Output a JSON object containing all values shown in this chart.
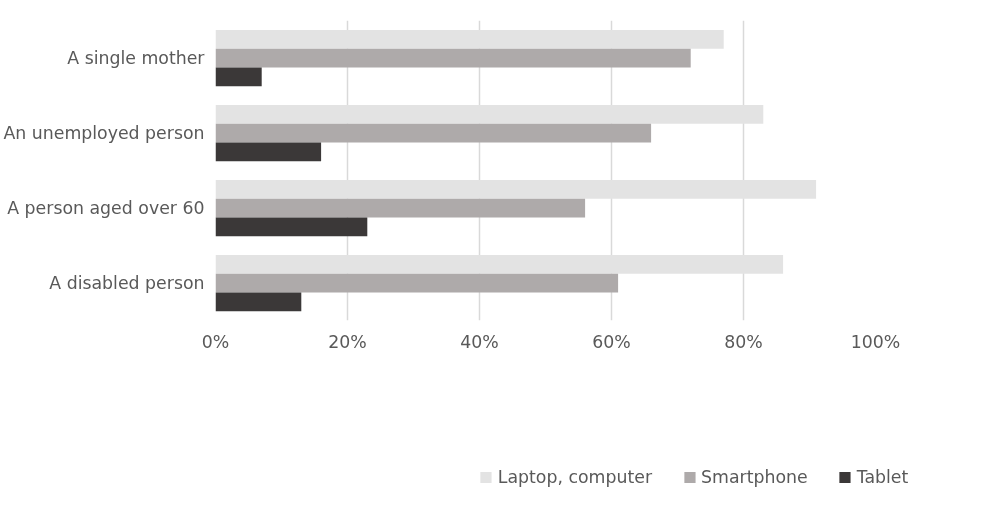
{
  "chart_data": {
    "type": "bar",
    "orientation": "horizontal",
    "categories": [
      "A single mother",
      "An unemployed person",
      "A person aged over 60",
      "A disabled person"
    ],
    "series": [
      {
        "name": "Laptop, computer",
        "color": "#e3e3e3",
        "values": [
          77,
          83,
          91,
          86
        ]
      },
      {
        "name": "Smartphone",
        "color": "#aeaaaa",
        "values": [
          72,
          66,
          56,
          61
        ]
      },
      {
        "name": "Tablet",
        "color": "#3b3838",
        "values": [
          7,
          16,
          23,
          13
        ]
      }
    ],
    "xlim": [
      0,
      100
    ],
    "xticks": [
      {
        "value": 0,
        "label": "0%"
      },
      {
        "value": 20,
        "label": "20%"
      },
      {
        "value": 40,
        "label": "40%"
      },
      {
        "value": 60,
        "label": "60%"
      },
      {
        "value": 80,
        "label": "80%"
      },
      {
        "value": 100,
        "label": "100%"
      }
    ],
    "grid": "x",
    "legend": "bottom"
  }
}
